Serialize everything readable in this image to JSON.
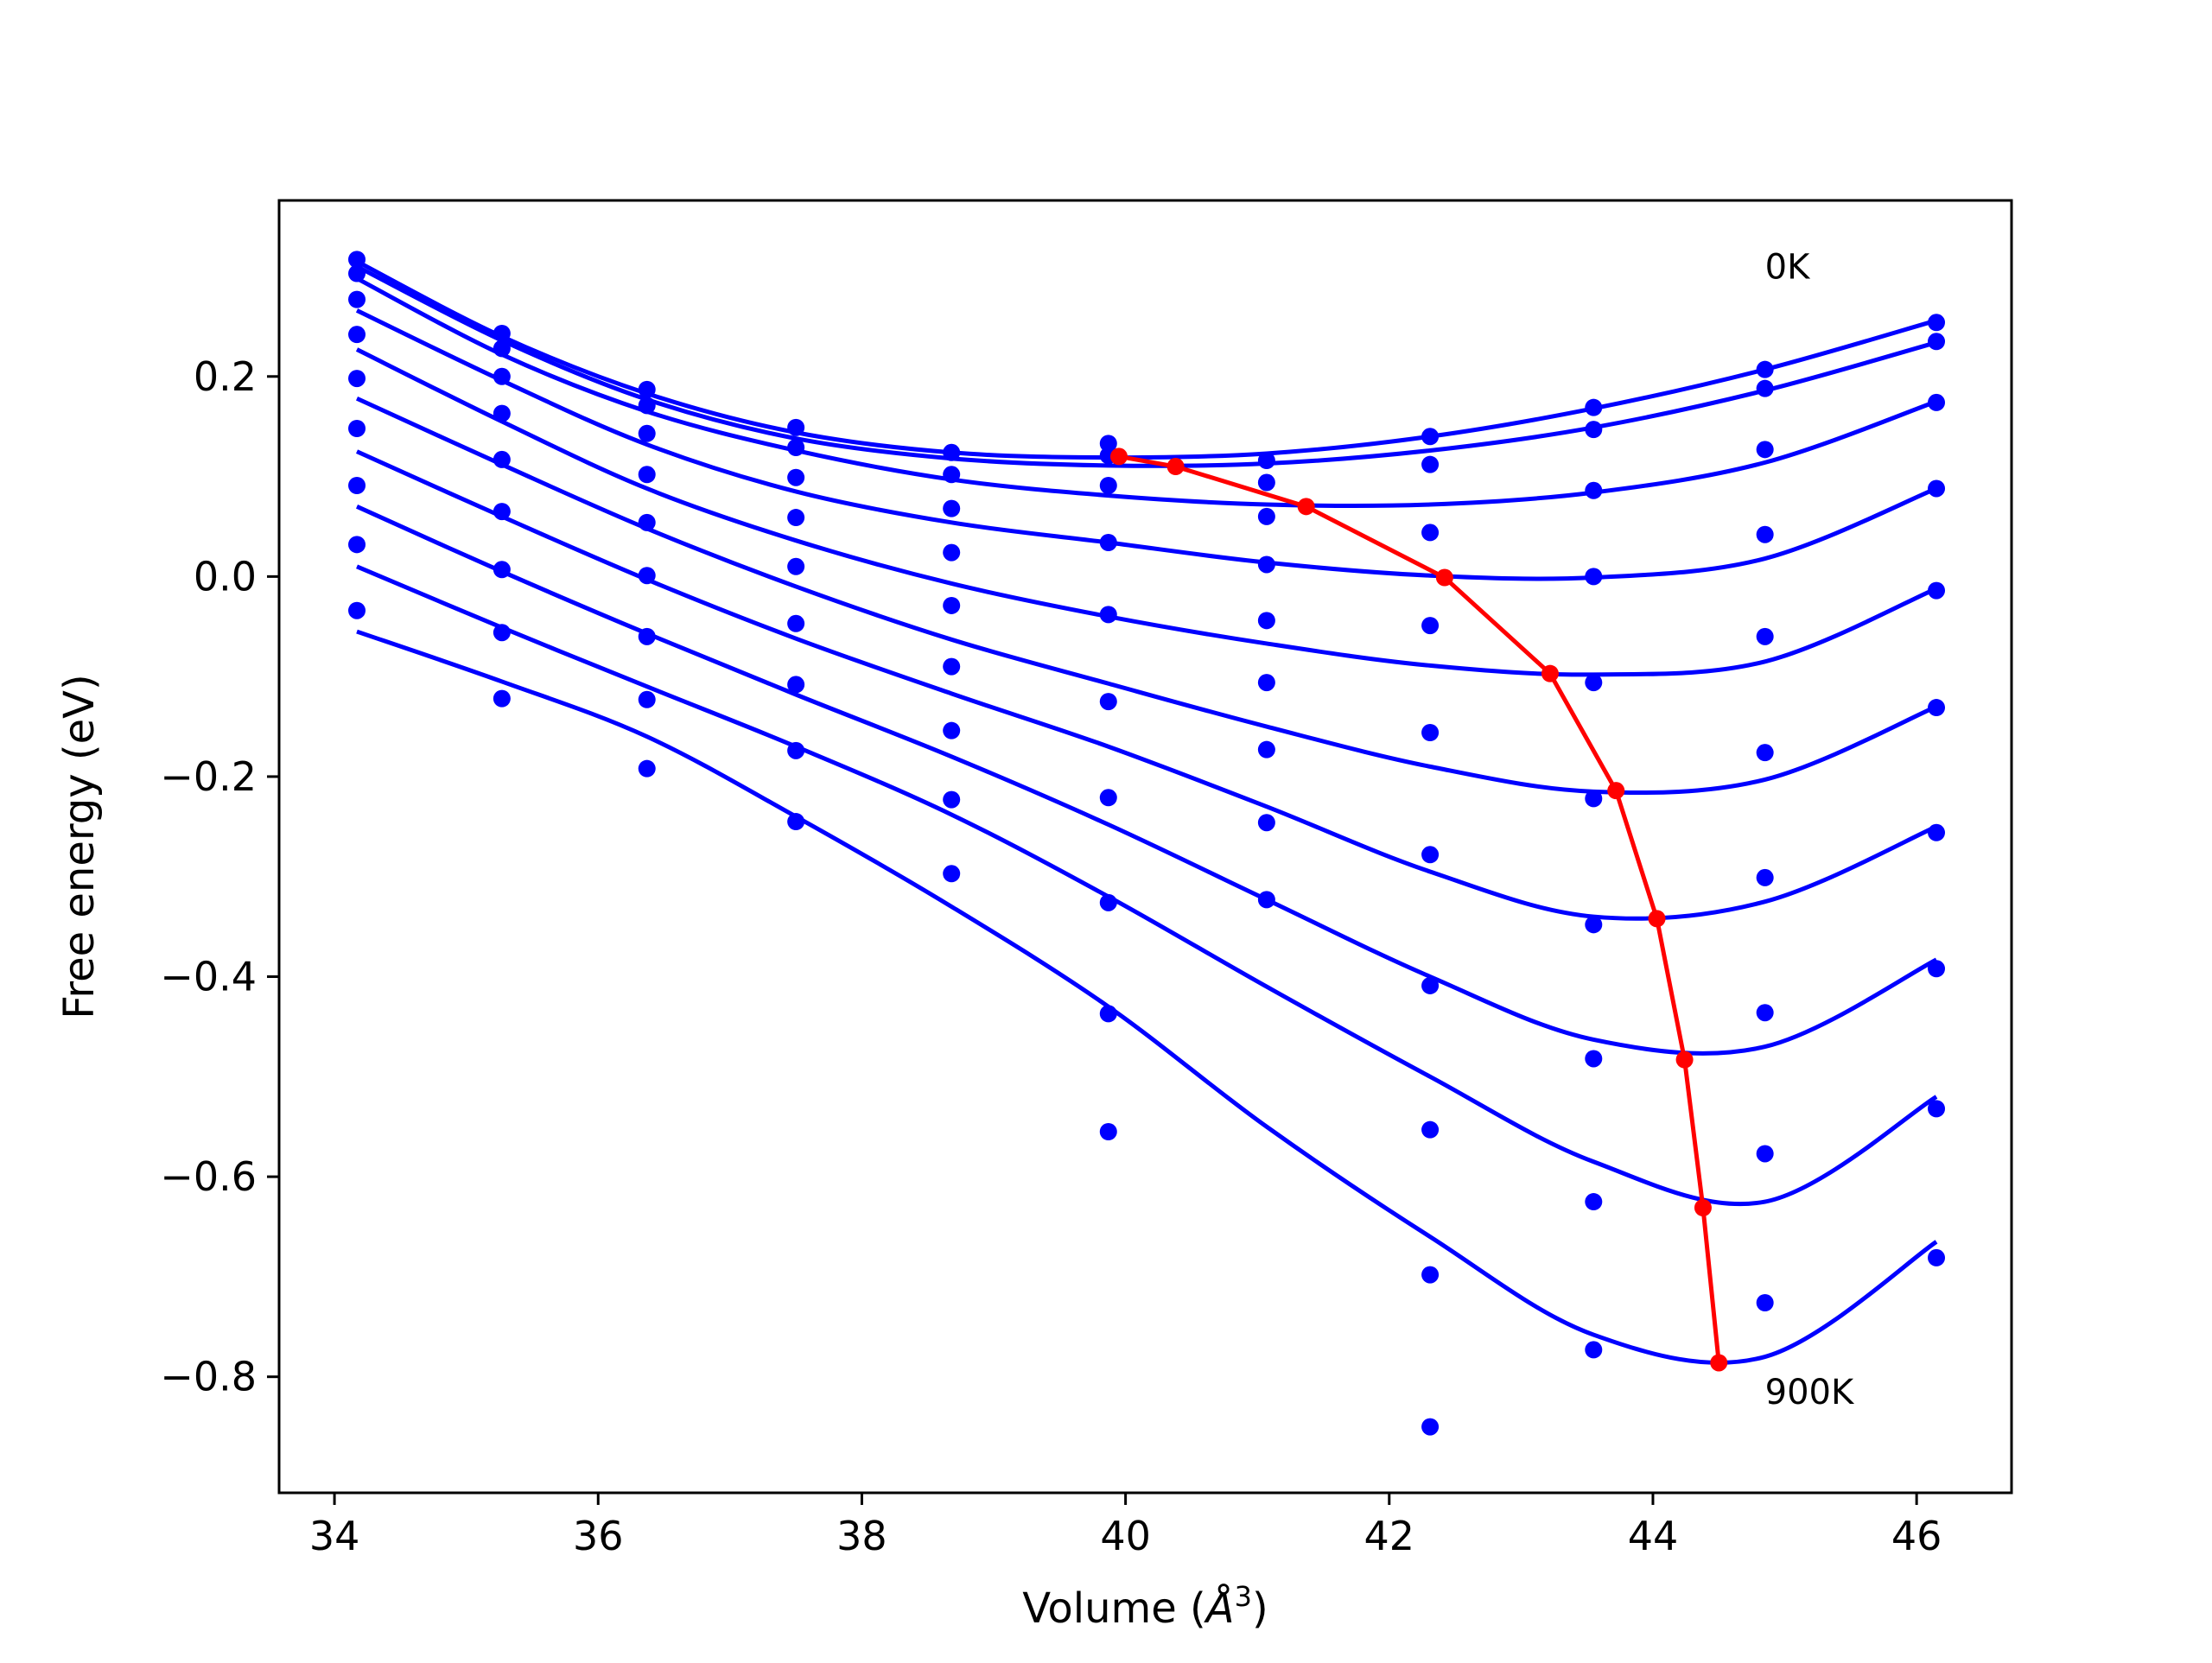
{
  "chart_data": {
    "type": "scatter",
    "title": "",
    "xlabel": {
      "prefix": "Volume (",
      "symbol": "Å",
      "superscript": "3",
      "suffix": ")"
    },
    "ylabel": "Free energy (eV)",
    "xlim": [
      33.58,
      46.72
    ],
    "ylim": [
      -0.916,
      0.376
    ],
    "x_ticks": [
      34,
      36,
      38,
      40,
      42,
      44,
      46
    ],
    "x_tick_labels": [
      "34",
      "36",
      "38",
      "40",
      "42",
      "44",
      "46"
    ],
    "y_ticks": [
      0.2,
      0.0,
      -0.2,
      -0.4,
      -0.6,
      -0.8
    ],
    "y_tick_labels": [
      "0.2",
      "0.0",
      "−0.2",
      "−0.4",
      "−0.6",
      "−0.8"
    ],
    "grid": false,
    "legend": null,
    "colors": {
      "points": "#0000ff",
      "fit_curves": "#0000ff",
      "minimum_path": "#ff0000"
    },
    "annotations": [
      {
        "text": "0K",
        "x": 44.85,
        "y": 0.31
      },
      {
        "text": "900K",
        "x": 44.85,
        "y": -0.815
      }
    ],
    "x_volumes": [
      34.17,
      35.27,
      36.37,
      37.5,
      38.68,
      39.87,
      41.07,
      42.31,
      43.55,
      44.85,
      46.15
    ],
    "series": [
      {
        "label_index": 0,
        "points": [
          0.317,
          0.243,
          0.187,
          0.149,
          0.124,
          0.133,
          0.116,
          0.14,
          0.169,
          0.207,
          0.254
        ],
        "fit": {
          "x": [
            34.17,
            35.27,
            36.37,
            37.5,
            38.68,
            39.87,
            41.07,
            42.31,
            43.55,
            44.85,
            46.15
          ],
          "y": [
            0.315,
            0.24,
            0.183,
            0.144,
            0.124,
            0.119,
            0.123,
            0.14,
            0.168,
            0.207,
            0.256
          ]
        }
      },
      {
        "label_index": 1,
        "points": [
          0.303,
          0.228,
          0.171,
          0.129,
          0.102,
          0.091,
          0.094,
          0.112,
          0.147,
          0.188,
          0.235
        ],
        "fit": {
          "x": [
            34.17,
            35.27,
            36.37,
            37.5,
            38.68,
            39.87,
            41.07,
            42.31,
            43.55,
            44.85,
            46.15
          ],
          "y": [
            0.31,
            0.236,
            0.177,
            0.138,
            0.118,
            0.111,
            0.113,
            0.126,
            0.149,
            0.186,
            0.234
          ]
        }
      },
      {
        "label_index": 2,
        "points": [
          0.277,
          0.2,
          0.143,
          0.099,
          0.068,
          0.121,
          0.06,
          0.044,
          0.086,
          0.127,
          0.174
        ],
        "fit": {
          "x": [
            34.17,
            35.27,
            36.37,
            37.5,
            38.68,
            39.87,
            41.07,
            42.31,
            43.55,
            44.85,
            46.15
          ],
          "y": [
            0.298,
            0.222,
            0.165,
            0.126,
            0.097,
            0.081,
            0.072,
            0.072,
            0.084,
            0.114,
            0.175
          ]
        }
      },
      {
        "label_index": 3,
        "points": [
          0.242,
          0.163,
          0.102,
          0.059,
          0.024,
          0.034,
          0.012,
          -0.049,
          0.0,
          0.042,
          0.088
        ],
        "fit": {
          "x": [
            34.17,
            35.27,
            36.37,
            37.5,
            38.68,
            39.87,
            41.07,
            42.31,
            43.55,
            44.85,
            46.15
          ],
          "y": [
            0.266,
            0.196,
            0.132,
            0.085,
            0.054,
            0.034,
            0.014,
            0.001,
            -0.001,
            0.018,
            0.088
          ]
        }
      },
      {
        "label_index": 4,
        "points": [
          0.198,
          0.117,
          0.054,
          0.01,
          -0.029,
          -0.038,
          -0.044,
          -0.156,
          -0.106,
          -0.06,
          -0.014
        ],
        "fit": {
          "x": [
            34.17,
            35.27,
            36.37,
            37.5,
            38.68,
            39.87,
            41.07,
            42.31,
            43.55,
            44.85,
            46.15
          ],
          "y": [
            0.227,
            0.155,
            0.088,
            0.036,
            -0.007,
            -0.04,
            -0.067,
            -0.089,
            -0.098,
            -0.085,
            -0.012
          ]
        }
      },
      {
        "label_index": 5,
        "points": [
          0.148,
          0.065,
          0.001,
          -0.047,
          -0.09,
          -0.125,
          -0.106,
          -0.278,
          -0.222,
          -0.176,
          -0.131
        ],
        "fit": {
          "x": [
            34.17,
            35.27,
            36.37,
            37.5,
            38.68,
            39.87,
            41.07,
            42.31,
            43.55,
            44.85,
            46.15
          ],
          "y": [
            0.178,
            0.112,
            0.048,
            -0.01,
            -0.063,
            -0.107,
            -0.15,
            -0.19,
            -0.215,
            -0.203,
            -0.13
          ]
        }
      },
      {
        "label_index": 6,
        "points": [
          0.091,
          0.007,
          -0.06,
          -0.108,
          -0.154,
          -0.221,
          -0.173,
          -0.409,
          -0.348,
          -0.301,
          -0.256
        ],
        "fit": {
          "x": [
            34.17,
            35.27,
            36.37,
            37.5,
            38.68,
            39.87,
            41.07,
            42.31,
            43.55,
            44.85,
            46.15
          ],
          "y": [
            0.125,
            0.06,
            -0.003,
            -0.062,
            -0.117,
            -0.17,
            -0.23,
            -0.295,
            -0.34,
            -0.325,
            -0.25
          ]
        }
      },
      {
        "label_index": 7,
        "points": [
          0.032,
          -0.056,
          -0.123,
          -0.174,
          -0.223,
          -0.326,
          -0.246,
          -0.553,
          -0.482,
          -0.436,
          -0.392
        ],
        "fit": {
          "x": [
            34.17,
            35.27,
            36.37,
            37.5,
            38.68,
            39.87,
            41.07,
            42.31,
            43.55,
            44.85,
            46.15
          ],
          "y": [
            0.07,
            0.005,
            -0.057,
            -0.118,
            -0.18,
            -0.248,
            -0.323,
            -0.4,
            -0.463,
            -0.47,
            -0.383
          ]
        }
      },
      {
        "label_index": 8,
        "points": [
          -0.034,
          -0.122,
          -0.192,
          -0.245,
          -0.297,
          -0.437,
          -0.323,
          -0.698,
          -0.625,
          -0.577,
          -0.532
        ],
        "fit": {
          "x": [
            34.17,
            35.27,
            36.37,
            37.5,
            38.68,
            39.87,
            41.07,
            42.31,
            43.55,
            44.85,
            46.15
          ],
          "y": [
            0.01,
            -0.051,
            -0.11,
            -0.17,
            -0.238,
            -0.32,
            -0.41,
            -0.5,
            -0.585,
            -0.625,
            -0.52
          ]
        }
      },
      {
        "label_index": 9,
        "points": [
          null,
          null,
          null,
          null,
          null,
          -0.555,
          null,
          -0.85,
          -0.773,
          -0.726,
          -0.681
        ],
        "fit": {
          "x": [
            34.17,
            35.27,
            36.37,
            37.5,
            38.68,
            39.87,
            41.07,
            42.31,
            43.55,
            44.85,
            46.15
          ],
          "y": [
            -0.055,
            -0.105,
            -0.16,
            -0.24,
            -0.33,
            -0.43,
            -0.55,
            -0.66,
            -0.758,
            -0.78,
            -0.665
          ]
        }
      }
    ],
    "minimum_path": {
      "x": [
        39.95,
        40.38,
        41.37,
        42.42,
        43.22,
        43.72,
        44.03,
        44.24,
        44.38,
        44.5
      ],
      "y": [
        0.12,
        0.11,
        0.07,
        -0.001,
        -0.097,
        -0.214,
        -0.342,
        -0.483,
        -0.631,
        -0.786
      ]
    }
  }
}
